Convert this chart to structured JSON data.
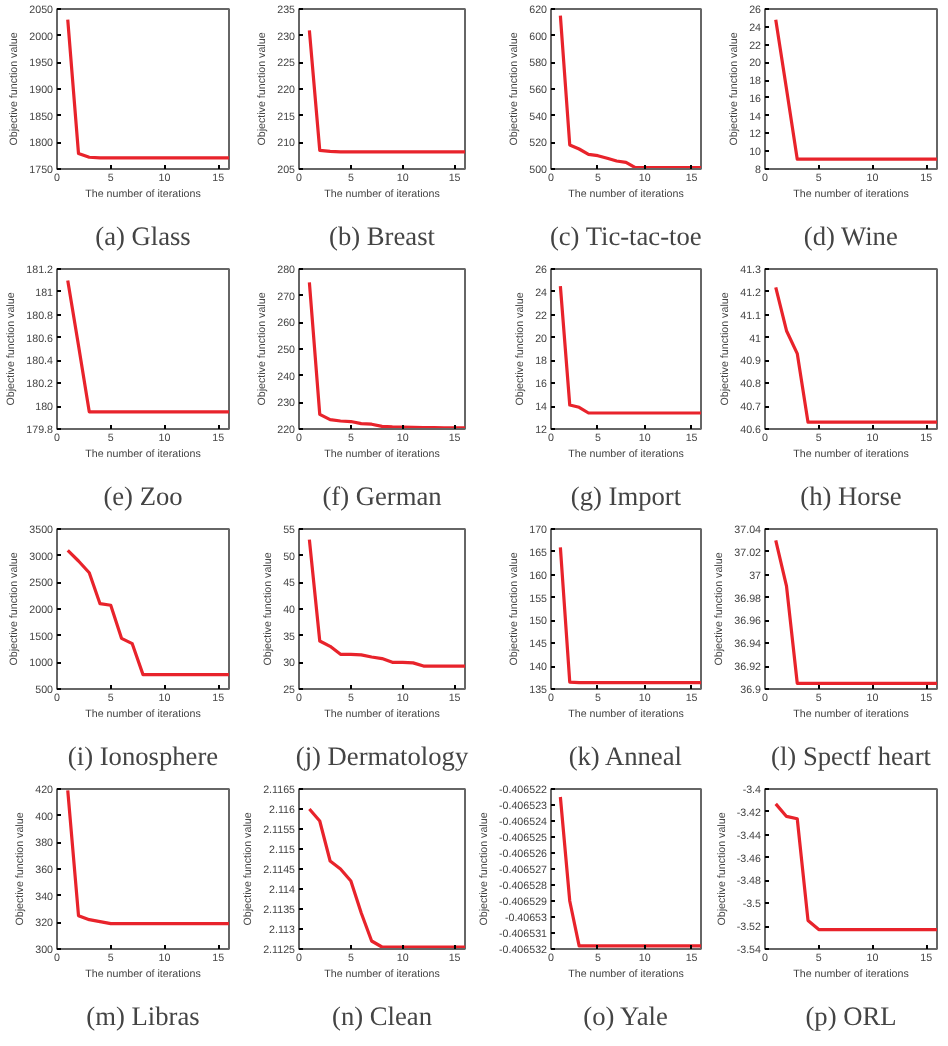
{
  "chart_data": [
    {
      "type": "line",
      "title": "(a) Glass",
      "xlabel": "The number of iterations",
      "ylabel": "Objective function value",
      "x": [
        1,
        2,
        3,
        4,
        5,
        6,
        7,
        8,
        9,
        10,
        11,
        12,
        13,
        14,
        15,
        16
      ],
      "series": [
        {
          "color": "#e8232b",
          "values": [
            2030,
            1779,
            1772,
            1771,
            1771,
            1771,
            1771,
            1771,
            1771,
            1771,
            1771,
            1771,
            1771,
            1771,
            1771,
            1771
          ]
        }
      ],
      "xlim": [
        0,
        16
      ],
      "xticks": [
        0,
        5,
        10,
        15
      ],
      "ylim": [
        1750,
        2050
      ],
      "yticks": [
        1750,
        1800,
        1850,
        1900,
        1950,
        2000,
        2050
      ],
      "grid": false,
      "marker": "none"
    },
    {
      "type": "line",
      "title": "(b) Breast",
      "xlabel": "The number of iterations",
      "ylabel": "Objective function value",
      "x": [
        1,
        2,
        3,
        4,
        5,
        6,
        7,
        8,
        9,
        10,
        11,
        12,
        13,
        14,
        15,
        16
      ],
      "series": [
        {
          "color": "#e8232b",
          "values": [
            231,
            208.5,
            208.3,
            208.2,
            208.2,
            208.2,
            208.2,
            208.2,
            208.2,
            208.2,
            208.2,
            208.2,
            208.2,
            208.2,
            208.2,
            208.2
          ]
        }
      ],
      "xlim": [
        0,
        16
      ],
      "xticks": [
        0,
        5,
        10,
        15
      ],
      "ylim": [
        205,
        235
      ],
      "yticks": [
        205,
        210,
        215,
        220,
        225,
        230,
        235
      ],
      "grid": false,
      "marker": "none"
    },
    {
      "type": "line",
      "title": "(c) Tic-tac-toe",
      "xlabel": "The number of iterations",
      "ylabel": "Objective function value",
      "x": [
        1,
        2,
        3,
        4,
        5,
        6,
        7,
        8,
        9,
        10,
        11,
        12,
        13,
        14,
        15,
        16
      ],
      "series": [
        {
          "color": "#e8232b",
          "values": [
            615,
            518,
            515,
            511,
            510,
            508,
            506,
            505,
            501,
            501,
            501,
            501,
            501,
            501,
            501,
            501
          ]
        }
      ],
      "xlim": [
        0,
        16
      ],
      "xticks": [
        0,
        5,
        10,
        15
      ],
      "ylim": [
        500,
        620
      ],
      "yticks": [
        500,
        520,
        540,
        560,
        580,
        600,
        620
      ],
      "grid": false,
      "marker": "none"
    },
    {
      "type": "line",
      "title": "(d) Wine",
      "xlabel": "The number of iterations",
      "ylabel": "Objective function value",
      "x": [
        1,
        2,
        3,
        4,
        5,
        6,
        7,
        8,
        9,
        10,
        11,
        12,
        13,
        14,
        15,
        16
      ],
      "series": [
        {
          "color": "#e8232b",
          "values": [
            24.8,
            17,
            9.1,
            9.1,
            9.1,
            9.1,
            9.1,
            9.1,
            9.1,
            9.1,
            9.1,
            9.1,
            9.1,
            9.1,
            9.1,
            9.1
          ]
        }
      ],
      "xlim": [
        0,
        16
      ],
      "xticks": [
        0,
        5,
        10,
        15
      ],
      "ylim": [
        8,
        26
      ],
      "yticks": [
        8,
        10,
        12,
        14,
        16,
        18,
        20,
        22,
        24,
        26
      ],
      "grid": false,
      "marker": "none"
    },
    {
      "type": "line",
      "title": "(e) Zoo",
      "xlabel": "The number of iterations",
      "ylabel": "Objective function value",
      "x": [
        1,
        2,
        3,
        4,
        5,
        6,
        7,
        8,
        9,
        10,
        11,
        12,
        13,
        14,
        15,
        16
      ],
      "series": [
        {
          "color": "#e8232b",
          "values": [
            181.1,
            180.53,
            179.95,
            179.95,
            179.95,
            179.95,
            179.95,
            179.95,
            179.95,
            179.95,
            179.95,
            179.95,
            179.95,
            179.95,
            179.95,
            179.95
          ]
        }
      ],
      "xlim": [
        0,
        16
      ],
      "xticks": [
        0,
        5,
        10,
        15
      ],
      "ylim": [
        179.8,
        181.2
      ],
      "yticks": [
        179.8,
        180,
        180.2,
        180.4,
        180.6,
        180.8,
        181,
        181.2
      ],
      "grid": false,
      "marker": "none"
    },
    {
      "type": "line",
      "title": "(f) German",
      "xlabel": "The number of iterations",
      "ylabel": "Objective function value",
      "x": [
        1,
        2,
        3,
        4,
        5,
        6,
        7,
        8,
        9,
        10,
        11,
        12,
        13,
        14,
        15,
        16
      ],
      "series": [
        {
          "color": "#e8232b",
          "values": [
            275,
            225.5,
            223.5,
            223,
            222.8,
            222,
            221.8,
            221,
            220.8,
            220.7,
            220.6,
            220.5,
            220.5,
            220.4,
            220.4,
            220.4
          ]
        }
      ],
      "xlim": [
        0,
        16
      ],
      "xticks": [
        0,
        5,
        10,
        15
      ],
      "ylim": [
        220,
        280
      ],
      "yticks": [
        220,
        230,
        240,
        250,
        260,
        270,
        280
      ],
      "grid": false,
      "marker": "none"
    },
    {
      "type": "line",
      "title": "(g) Import",
      "xlabel": "The number of iterations",
      "ylabel": "Objective function value",
      "x": [
        1,
        2,
        3,
        4,
        5,
        6,
        7,
        8,
        9,
        10,
        11,
        12,
        13,
        14,
        15,
        16
      ],
      "series": [
        {
          "color": "#e8232b",
          "values": [
            24.5,
            14.1,
            13.9,
            13.4,
            13.4,
            13.4,
            13.4,
            13.4,
            13.4,
            13.4,
            13.4,
            13.4,
            13.4,
            13.4,
            13.4,
            13.4
          ]
        }
      ],
      "xlim": [
        0,
        16
      ],
      "xticks": [
        0,
        5,
        10,
        15
      ],
      "ylim": [
        12,
        26
      ],
      "yticks": [
        12,
        14,
        16,
        18,
        20,
        22,
        24,
        26
      ],
      "grid": false,
      "marker": "none"
    },
    {
      "type": "line",
      "title": "(h) Horse",
      "xlabel": "The number of iterations",
      "ylabel": "Objective function value",
      "x": [
        1,
        2,
        3,
        4,
        5,
        6,
        7,
        8,
        9,
        10,
        11,
        12,
        13,
        14,
        15,
        16
      ],
      "series": [
        {
          "color": "#e8232b",
          "values": [
            41.22,
            41.03,
            40.93,
            40.63,
            40.63,
            40.63,
            40.63,
            40.63,
            40.63,
            40.63,
            40.63,
            40.63,
            40.63,
            40.63,
            40.63,
            40.63
          ]
        }
      ],
      "xlim": [
        0,
        16
      ],
      "xticks": [
        0,
        5,
        10,
        15
      ],
      "ylim": [
        40.6,
        41.3
      ],
      "yticks": [
        40.6,
        40.7,
        40.8,
        40.9,
        41,
        41.1,
        41.2,
        41.3
      ],
      "grid": false,
      "marker": "none"
    },
    {
      "type": "line",
      "title": "(i) Ionosphere",
      "xlabel": "The number of iterations",
      "ylabel": "Objective function value",
      "x": [
        1,
        2,
        3,
        4,
        5,
        6,
        7,
        8,
        9,
        10,
        11,
        12,
        13,
        14,
        15,
        16
      ],
      "series": [
        {
          "color": "#e8232b",
          "values": [
            3100,
            2900,
            2680,
            2100,
            2070,
            1450,
            1350,
            770,
            770,
            770,
            770,
            770,
            770,
            770,
            770,
            770
          ]
        }
      ],
      "xlim": [
        0,
        16
      ],
      "xticks": [
        0,
        5,
        10,
        15
      ],
      "ylim": [
        500,
        3500
      ],
      "yticks": [
        500,
        1000,
        1500,
        2000,
        2500,
        3000,
        3500
      ],
      "grid": false,
      "marker": "none"
    },
    {
      "type": "line",
      "title": "(j) Dermatology",
      "xlabel": "The number of iterations",
      "ylabel": "Objective function value",
      "x": [
        1,
        2,
        3,
        4,
        5,
        6,
        7,
        8,
        9,
        10,
        11,
        12,
        13,
        14,
        15,
        16
      ],
      "series": [
        {
          "color": "#e8232b",
          "values": [
            53,
            34,
            33,
            31.5,
            31.5,
            31.4,
            31,
            30.7,
            30,
            30,
            29.9,
            29.3,
            29.3,
            29.3,
            29.3,
            29.3
          ]
        }
      ],
      "xlim": [
        0,
        16
      ],
      "xticks": [
        0,
        5,
        10,
        15
      ],
      "ylim": [
        25,
        55
      ],
      "yticks": [
        25,
        30,
        35,
        40,
        45,
        50,
        55
      ],
      "grid": false,
      "marker": "none"
    },
    {
      "type": "line",
      "title": "(k) Anneal",
      "xlabel": "The number of iterations",
      "ylabel": "Objective function value",
      "x": [
        1,
        2,
        3,
        4,
        5,
        6,
        7,
        8,
        9,
        10,
        11,
        12,
        13,
        14,
        15,
        16
      ],
      "series": [
        {
          "color": "#e8232b",
          "values": [
            166,
            136.5,
            136.4,
            136.4,
            136.4,
            136.4,
            136.4,
            136.4,
            136.4,
            136.4,
            136.4,
            136.4,
            136.4,
            136.4,
            136.4,
            136.4
          ]
        }
      ],
      "xlim": [
        0,
        16
      ],
      "xticks": [
        0,
        5,
        10,
        15
      ],
      "ylim": [
        135,
        170
      ],
      "yticks": [
        135,
        140,
        145,
        150,
        155,
        160,
        165,
        170
      ],
      "grid": false,
      "marker": "none"
    },
    {
      "type": "line",
      "title": "(l) Spectf heart",
      "xlabel": "The number of iterations",
      "ylabel": "Objective function value",
      "x": [
        1,
        2,
        3,
        4,
        5,
        6,
        7,
        8,
        9,
        10,
        11,
        12,
        13,
        14,
        15,
        16
      ],
      "series": [
        {
          "color": "#e8232b",
          "values": [
            37.03,
            36.99,
            36.905,
            36.905,
            36.905,
            36.905,
            36.905,
            36.905,
            36.905,
            36.905,
            36.905,
            36.905,
            36.905,
            36.905,
            36.905,
            36.905
          ]
        }
      ],
      "xlim": [
        0,
        16
      ],
      "xticks": [
        0,
        5,
        10,
        15
      ],
      "ylim": [
        36.9,
        37.04
      ],
      "yticks": [
        36.9,
        36.92,
        36.94,
        36.96,
        36.98,
        37,
        37.02,
        37.04
      ],
      "grid": false,
      "marker": "none"
    },
    {
      "type": "line",
      "title": "(m) Libras",
      "xlabel": "The number of iterations",
      "ylabel": "Objective function value",
      "x": [
        1,
        2,
        3,
        4,
        5,
        6,
        7,
        8,
        9,
        10,
        11,
        12,
        13,
        14,
        15,
        16
      ],
      "series": [
        {
          "color": "#e8232b",
          "values": [
            419,
            325,
            322,
            320.5,
            319,
            319,
            319,
            319,
            319,
            319,
            319,
            319,
            319,
            319,
            319,
            319
          ]
        }
      ],
      "xlim": [
        0,
        16
      ],
      "xticks": [
        0,
        5,
        10,
        15
      ],
      "ylim": [
        300,
        420
      ],
      "yticks": [
        300,
        320,
        340,
        360,
        380,
        400,
        420
      ],
      "grid": false,
      "marker": "none"
    },
    {
      "type": "line",
      "title": "(n) Clean",
      "xlabel": "The number of iterations",
      "ylabel": "Objective function value",
      "x": [
        1,
        2,
        3,
        4,
        5,
        6,
        7,
        8,
        9,
        10,
        11,
        12,
        13,
        14,
        15,
        16
      ],
      "series": [
        {
          "color": "#e8232b",
          "values": [
            2.116,
            2.1157,
            2.1147,
            2.1145,
            2.1142,
            2.1134,
            2.1127,
            2.11255,
            2.11255,
            2.11255,
            2.11255,
            2.11255,
            2.11255,
            2.11255,
            2.11255,
            2.11255
          ]
        }
      ],
      "xlim": [
        0,
        16
      ],
      "xticks": [
        0,
        5,
        10,
        15
      ],
      "ylim": [
        2.1125,
        2.1165
      ],
      "yticks": [
        2.1125,
        2.113,
        2.1135,
        2.114,
        2.1145,
        2.115,
        2.1155,
        2.116,
        2.1165
      ],
      "grid": false,
      "marker": "none"
    },
    {
      "type": "line",
      "title": "(o) Yale",
      "xlabel": "The number of iterations",
      "ylabel": "Objective function value",
      "x": [
        1,
        2,
        3,
        4,
        5,
        6,
        7,
        8,
        9,
        10,
        11,
        12,
        13,
        14,
        15,
        16
      ],
      "series": [
        {
          "color": "#e8232b",
          "values": [
            -0.4065225,
            -0.406529,
            -0.4065318,
            -0.4065318,
            -0.4065318,
            -0.4065318,
            -0.4065318,
            -0.4065318,
            -0.4065318,
            -0.4065318,
            -0.4065318,
            -0.4065318,
            -0.4065318,
            -0.4065318,
            -0.4065318,
            -0.4065318
          ]
        }
      ],
      "xlim": [
        0,
        16
      ],
      "xticks": [
        0,
        5,
        10,
        15
      ],
      "ylim": [
        -0.406532,
        -0.406522
      ],
      "yticks": [
        -0.406532,
        -0.406531,
        -0.40653,
        -0.406529,
        -0.406528,
        -0.406527,
        -0.406526,
        -0.406525,
        -0.406524,
        -0.406523,
        -0.406522
      ],
      "grid": false,
      "marker": "none"
    },
    {
      "type": "line",
      "title": "(p) ORL",
      "xlabel": "The number of iterations",
      "ylabel": "Objective function value",
      "x": [
        1,
        2,
        3,
        4,
        5,
        6,
        7,
        8,
        9,
        10,
        11,
        12,
        13,
        14,
        15,
        16
      ],
      "series": [
        {
          "color": "#e8232b",
          "values": [
            -3.413,
            -3.424,
            -3.426,
            -3.515,
            -3.523,
            -3.523,
            -3.523,
            -3.523,
            -3.523,
            -3.523,
            -3.523,
            -3.523,
            -3.523,
            -3.523,
            -3.523,
            -3.523
          ]
        }
      ],
      "xlim": [
        0,
        16
      ],
      "xticks": [
        0,
        5,
        10,
        15
      ],
      "ylim": [
        -3.54,
        -3.4
      ],
      "yticks": [
        -3.54,
        -3.52,
        -3.5,
        -3.48,
        -3.46,
        -3.44,
        -3.42,
        -3.4
      ],
      "grid": false,
      "marker": "none"
    }
  ]
}
